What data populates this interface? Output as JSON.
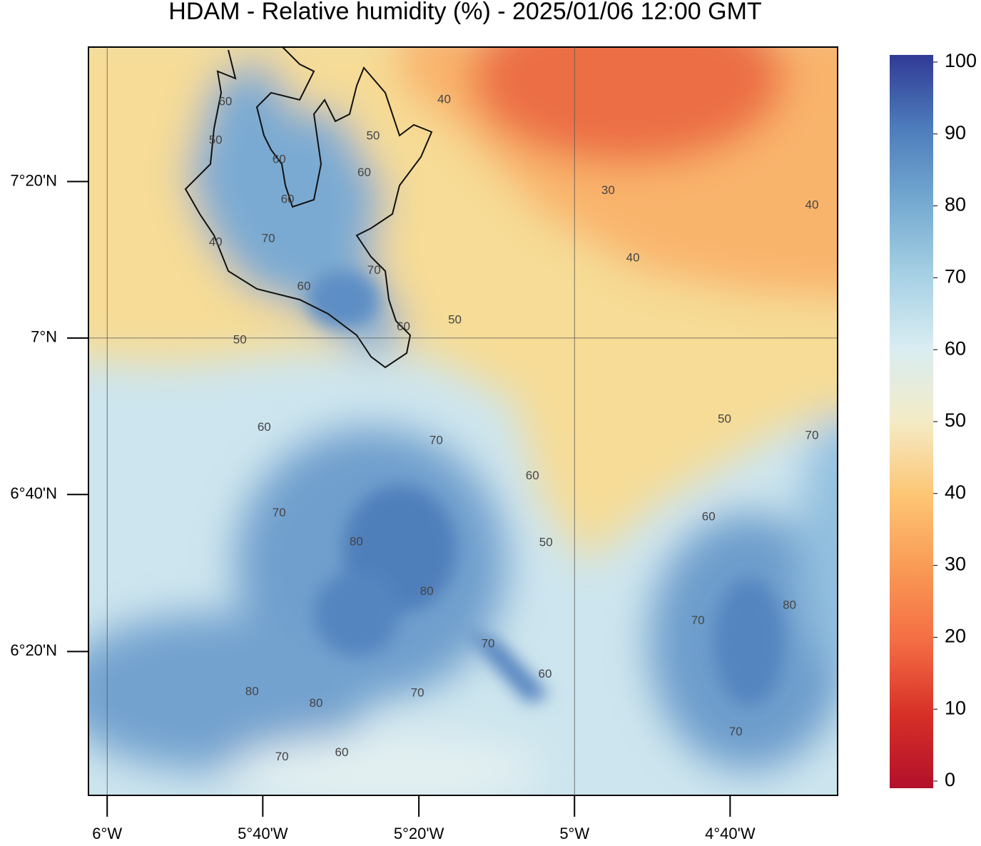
{
  "title": "HDAM - Relative humidity (%)  -  2025/01/06  12:00 GMT",
  "map": {
    "xlim": [
      -6.04,
      -4.437
    ],
    "ylim": [
      6.027,
      7.619
    ],
    "xticks": [
      {
        "value": -6,
        "label": "6°W"
      },
      {
        "value": -5.667,
        "label": "5°40'W"
      },
      {
        "value": -5.333,
        "label": "5°20'W"
      },
      {
        "value": -5,
        "label": "5°W"
      },
      {
        "value": -4.667,
        "label": "4°40'W"
      }
    ],
    "yticks": [
      {
        "value": 6.333,
        "label": "6°20'N"
      },
      {
        "value": 6.667,
        "label": "6°40'N"
      },
      {
        "value": 7,
        "label": "7°N"
      },
      {
        "value": 7.333,
        "label": "7°20'N"
      }
    ],
    "contours": [
      {
        "value": 40,
        "lon": -5.279,
        "lat": 7.507
      },
      {
        "value": 60,
        "lon": -5.747,
        "lat": 7.502
      },
      {
        "value": 50,
        "lon": -5.768,
        "lat": 7.42
      },
      {
        "value": 50,
        "lon": -5.431,
        "lat": 7.429
      },
      {
        "value": 60,
        "lon": -5.632,
        "lat": 7.379
      },
      {
        "value": 60,
        "lon": -5.45,
        "lat": 7.351
      },
      {
        "value": 60,
        "lon": -5.614,
        "lat": 7.294
      },
      {
        "value": 30,
        "lon": -4.928,
        "lat": 7.313
      },
      {
        "value": 40,
        "lon": -4.492,
        "lat": 7.282
      },
      {
        "value": 70,
        "lon": -5.655,
        "lat": 7.211
      },
      {
        "value": 40,
        "lon": -5.768,
        "lat": 7.203
      },
      {
        "value": 40,
        "lon": -4.875,
        "lat": 7.17
      },
      {
        "value": 70,
        "lon": -5.429,
        "lat": 7.143
      },
      {
        "value": 60,
        "lon": -5.579,
        "lat": 7.109
      },
      {
        "value": 50,
        "lon": -5.256,
        "lat": 7.038
      },
      {
        "value": 60,
        "lon": -5.366,
        "lat": 7.023
      },
      {
        "value": 50,
        "lon": -5.716,
        "lat": 6.995
      },
      {
        "value": 60,
        "lon": -5.664,
        "lat": 6.809
      },
      {
        "value": 70,
        "lon": -5.296,
        "lat": 6.781
      },
      {
        "value": 50,
        "lon": -4.679,
        "lat": 6.827
      },
      {
        "value": 70,
        "lon": -4.492,
        "lat": 6.792
      },
      {
        "value": 60,
        "lon": -5.09,
        "lat": 6.706
      },
      {
        "value": 70,
        "lon": -5.632,
        "lat": 6.627
      },
      {
        "value": 60,
        "lon": -4.713,
        "lat": 6.619
      },
      {
        "value": 80,
        "lon": -5.467,
        "lat": 6.566
      },
      {
        "value": 50,
        "lon": -5.061,
        "lat": 6.564
      },
      {
        "value": 80,
        "lon": -5.316,
        "lat": 6.46
      },
      {
        "value": 70,
        "lon": -4.736,
        "lat": 6.398
      },
      {
        "value": 80,
        "lon": -4.54,
        "lat": 6.431
      },
      {
        "value": 70,
        "lon": -5.185,
        "lat": 6.349
      },
      {
        "value": 60,
        "lon": -5.063,
        "lat": 6.284
      },
      {
        "value": 80,
        "lon": -5.69,
        "lat": 6.247
      },
      {
        "value": 70,
        "lon": -5.336,
        "lat": 6.244
      },
      {
        "value": 80,
        "lon": -5.553,
        "lat": 6.222
      },
      {
        "value": 70,
        "lon": -4.655,
        "lat": 6.161
      },
      {
        "value": 70,
        "lon": -5.626,
        "lat": 6.108
      },
      {
        "value": 60,
        "lon": -5.498,
        "lat": 6.117
      }
    ]
  },
  "colorbar": {
    "lim": [
      0,
      100
    ],
    "ticks": [
      0,
      10,
      20,
      30,
      40,
      50,
      60,
      70,
      80,
      90,
      100
    ],
    "colors": [
      "#b2102b",
      "#d73027",
      "#f46d43",
      "#f99a55",
      "#fdc674",
      "#f4ebc6",
      "#d9edf2",
      "#a6d0e4",
      "#74a9d0",
      "#4d7dbc",
      "#313a95"
    ]
  }
}
